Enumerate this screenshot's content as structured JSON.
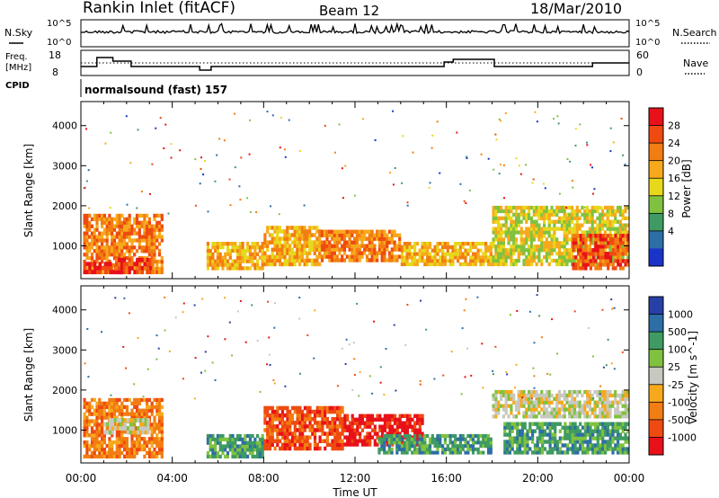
{
  "header": {
    "station": "Rankin Inlet (fitACF)",
    "beam": "Beam 12",
    "date": "18/Mar/2010"
  },
  "nsky_panel": {
    "left_label": "N.Sky",
    "right_label": "N.Search",
    "tick_top": "10^5",
    "tick_bottom": "10^0",
    "tick_top_right": "10^5",
    "tick_bottom_right": "10^0"
  },
  "freq_panel": {
    "left_label_1": "Freq.",
    "left_label_2": "[MHz]",
    "right_label": "Nave",
    "left_ticks": [
      "18",
      "8"
    ],
    "right_ticks": [
      "60",
      "0"
    ]
  },
  "cpid_panel": {
    "label": "CPID",
    "program": "normalsound (fast) 157"
  },
  "power_panel": {
    "ylabel": "Slant Range [km]",
    "colorbar_label": "Power [dB]",
    "colorbar_ticks": [
      "28",
      "24",
      "20",
      "16",
      "12",
      "8",
      "4"
    ],
    "colorbar_colors": [
      "#e8111a",
      "#ef4a10",
      "#f27d12",
      "#f7a91c",
      "#e7d81c",
      "#80c23f",
      "#3f9a63",
      "#2d6ea6",
      "#1a33c8"
    ]
  },
  "velocity_panel": {
    "ylabel": "Slant Range [km]",
    "colorbar_label": "Velocity [m s^-1]",
    "colorbar_ticks": [
      "1000",
      "500",
      "100",
      "25",
      "-25",
      "-100",
      "-500",
      "-1000"
    ],
    "colorbar_colors": [
      "#2740a8",
      "#2d6ea6",
      "#3f9a63",
      "#80c23f",
      "#c8c8c0",
      "#f7a91c",
      "#f27d12",
      "#ef4a10",
      "#e8111a"
    ]
  },
  "chart_data": {
    "type": "heatmap",
    "xlabel": "Time UT",
    "x_ticks": [
      "00:00",
      "04:00",
      "08:00",
      "12:00",
      "16:00",
      "20:00",
      "00:00"
    ],
    "x_range_hours": [
      0,
      24
    ],
    "y_range_km": [
      180,
      4600
    ],
    "y_ticks": [
      1000,
      2000,
      3000,
      4000
    ],
    "power_bands": [
      {
        "t0": 0.1,
        "t1": 3.6,
        "r0": 300,
        "r1": 1800,
        "level": 6
      },
      {
        "t0": 0.1,
        "t1": 1.8,
        "r0": 300,
        "r1": 600,
        "level": 8
      },
      {
        "t0": 1.5,
        "t1": 3.2,
        "r0": 300,
        "r1": 700,
        "level": 7
      },
      {
        "t0": 5.5,
        "t1": 8.0,
        "r0": 400,
        "r1": 1100,
        "level": 5
      },
      {
        "t0": 8.0,
        "t1": 10.5,
        "r0": 500,
        "r1": 1500,
        "level": 5
      },
      {
        "t0": 10.5,
        "t1": 14.0,
        "r0": 600,
        "r1": 1400,
        "level": 6
      },
      {
        "t0": 14.0,
        "t1": 18.0,
        "r0": 500,
        "r1": 1100,
        "level": 5
      },
      {
        "t0": 18.0,
        "t1": 24.0,
        "r0": 500,
        "r1": 2000,
        "level": 4
      },
      {
        "t0": 21.5,
        "t1": 24.0,
        "r0": 400,
        "r1": 1300,
        "level": 7
      }
    ],
    "velocity_bands": [
      {
        "t0": 0.1,
        "t1": 3.6,
        "r0": 300,
        "r1": 1800,
        "level": 2
      },
      {
        "t0": 1.0,
        "t1": 3.0,
        "r0": 900,
        "r1": 1300,
        "level": 4
      },
      {
        "t0": 5.5,
        "t1": 8.0,
        "r0": 300,
        "r1": 900,
        "level": 6
      },
      {
        "t0": 8.0,
        "t1": 11.5,
        "r0": 500,
        "r1": 1600,
        "level": 1
      },
      {
        "t0": 11.5,
        "t1": 15.0,
        "r0": 600,
        "r1": 1400,
        "level": 0
      },
      {
        "t0": 13.0,
        "t1": 18.0,
        "r0": 400,
        "r1": 900,
        "level": 6
      },
      {
        "t0": 18.0,
        "t1": 24.0,
        "r0": 1300,
        "r1": 2000,
        "level": 4
      },
      {
        "t0": 18.5,
        "t1": 24.0,
        "r0": 400,
        "r1": 1200,
        "level": 6
      }
    ]
  }
}
